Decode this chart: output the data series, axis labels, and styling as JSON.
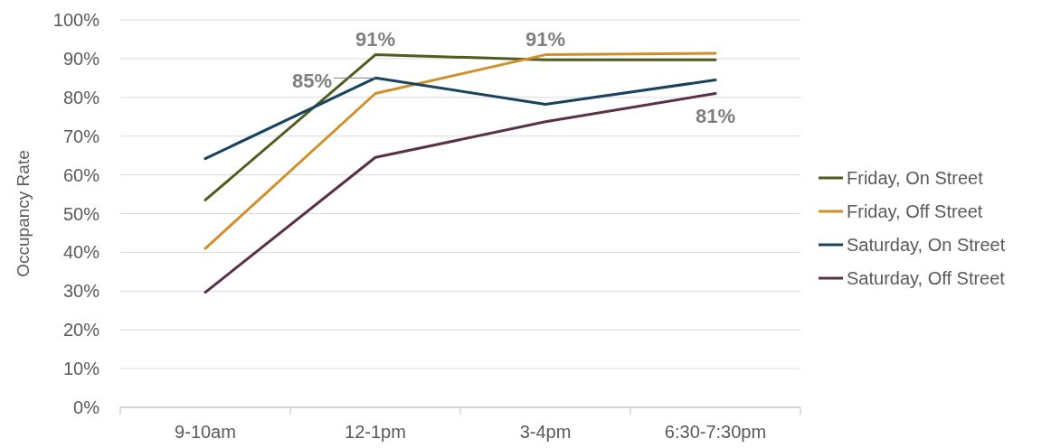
{
  "chart_data": {
    "type": "line",
    "ylabel": "Occupancy Rate",
    "categories": [
      "9-10am",
      "12-1pm",
      "3-4pm",
      "6:30-7:30pm"
    ],
    "series": [
      {
        "name": "Friday, On Street",
        "color": "#4f5b1f",
        "values": [
          53.5,
          91,
          89.7,
          89.7
        ],
        "value_labels": [
          null,
          "91%",
          null,
          null
        ]
      },
      {
        "name": "Friday, Off Street",
        "color": "#d18f2a",
        "values": [
          41,
          81,
          91,
          91.4
        ],
        "value_labels": [
          null,
          null,
          "91%",
          null
        ]
      },
      {
        "name": "Saturday, On Street",
        "color": "#17435f",
        "values": [
          64.2,
          85,
          78.2,
          84.5
        ],
        "value_labels": [
          null,
          "85%",
          null,
          null
        ]
      },
      {
        "name": "Saturday, Off Street",
        "color": "#5a2f48",
        "values": [
          29.7,
          64.5,
          73.7,
          81
        ],
        "value_labels": [
          null,
          null,
          null,
          "81%"
        ]
      }
    ],
    "ylim": [
      0,
      100
    ],
    "yticks": [
      {
        "value": 0,
        "label": "0%"
      },
      {
        "value": 10,
        "label": "10%"
      },
      {
        "value": 20,
        "label": "20%"
      },
      {
        "value": 30,
        "label": "30%"
      },
      {
        "value": 40,
        "label": "40%"
      },
      {
        "value": 50,
        "label": "50%"
      },
      {
        "value": 60,
        "label": "60%"
      },
      {
        "value": 70,
        "label": "70%"
      },
      {
        "value": 80,
        "label": "80%"
      },
      {
        "value": 90,
        "label": "90%"
      },
      {
        "value": 100,
        "label": "100%"
      }
    ],
    "grid": "y",
    "legend": "right",
    "marker": "none",
    "line_style": "solid"
  }
}
